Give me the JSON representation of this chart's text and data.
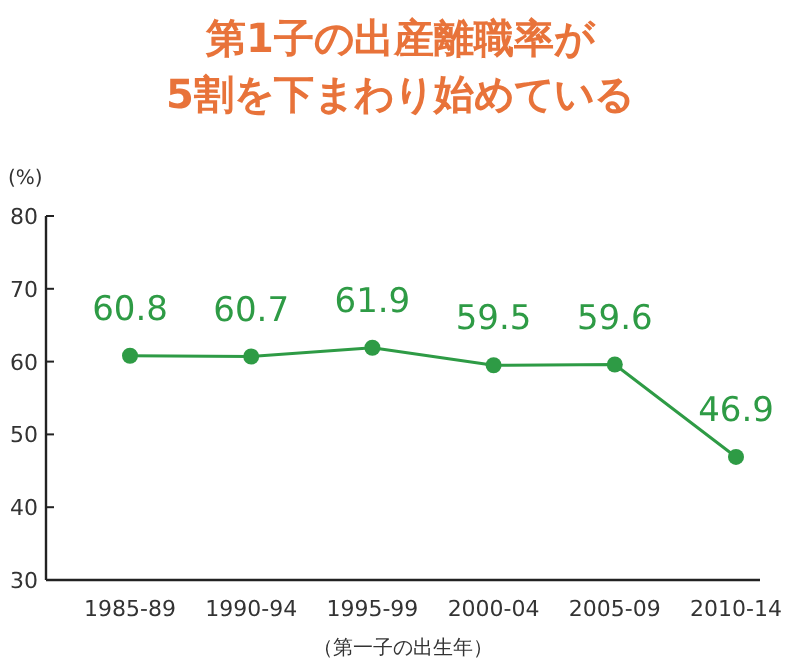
{
  "chart_data": {
    "type": "line",
    "title": "第1子の出産離職率が\n5割を下まわり始めている",
    "ylabel": "(%)",
    "xlabel": "（第一子の出生年）",
    "categories": [
      "1985-89",
      "1990-94",
      "1995-99",
      "2000-04",
      "2005-09",
      "2010-14"
    ],
    "series": [
      {
        "color": "#2e9b45",
        "values": [
          60.8,
          60.7,
          61.9,
          59.5,
          59.6,
          46.9
        ]
      }
    ],
    "ylim": [
      30,
      80
    ],
    "yticks": [
      30,
      40,
      50,
      60,
      70,
      80
    ],
    "data_labels": true,
    "marker": "circle",
    "grid": false
  }
}
